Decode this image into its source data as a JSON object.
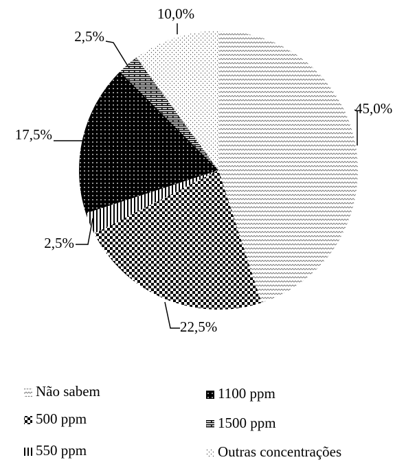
{
  "chart_data": {
    "type": "pie",
    "categories": [
      "Não sabem",
      "500 ppm",
      "550 ppm",
      "1100 ppm",
      "1500 ppm",
      "Outras concentrações"
    ],
    "values": [
      45,
      22.5,
      2.5,
      17.5,
      2.5,
      10
    ],
    "value_labels": [
      "45,0%",
      "22,5%",
      "2,5%",
      "17,5%",
      "2,5%",
      "10,0%"
    ]
  }
}
